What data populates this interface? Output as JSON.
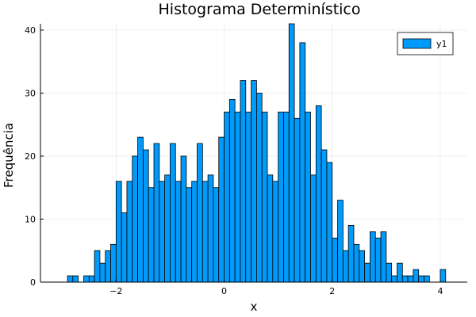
{
  "chart_data": {
    "type": "bar",
    "title": "Histograma Determinístico",
    "xlabel": "x",
    "ylabel": "Frequência",
    "xlim": [
      -3.4,
      4.5
    ],
    "ylim": [
      0,
      41
    ],
    "xticks": [
      -2,
      0,
      2,
      4
    ],
    "yticks": [
      0,
      10,
      20,
      30,
      40
    ],
    "grid": true,
    "legend_position": "top-right",
    "bin_width": 0.1,
    "series": [
      {
        "name": "y1",
        "color": "#009AFA",
        "bins": [
          {
            "x0": -2.9,
            "count": 1
          },
          {
            "x0": -2.8,
            "count": 1
          },
          {
            "x0": -2.7,
            "count": 0
          },
          {
            "x0": -2.6,
            "count": 1
          },
          {
            "x0": -2.5,
            "count": 1
          },
          {
            "x0": -2.4,
            "count": 5
          },
          {
            "x0": -2.3,
            "count": 3
          },
          {
            "x0": -2.2,
            "count": 5
          },
          {
            "x0": -2.1,
            "count": 6
          },
          {
            "x0": -2.0,
            "count": 16
          },
          {
            "x0": -1.9,
            "count": 11
          },
          {
            "x0": -1.8,
            "count": 16
          },
          {
            "x0": -1.7,
            "count": 20
          },
          {
            "x0": -1.6,
            "count": 23
          },
          {
            "x0": -1.5,
            "count": 21
          },
          {
            "x0": -1.4,
            "count": 15
          },
          {
            "x0": -1.3,
            "count": 22
          },
          {
            "x0": -1.2,
            "count": 16
          },
          {
            "x0": -1.1,
            "count": 17
          },
          {
            "x0": -1.0,
            "count": 22
          },
          {
            "x0": -0.9,
            "count": 16
          },
          {
            "x0": -0.8,
            "count": 20
          },
          {
            "x0": -0.7,
            "count": 15
          },
          {
            "x0": -0.6,
            "count": 16
          },
          {
            "x0": -0.5,
            "count": 22
          },
          {
            "x0": -0.4,
            "count": 16
          },
          {
            "x0": -0.3,
            "count": 17
          },
          {
            "x0": -0.2,
            "count": 15
          },
          {
            "x0": -0.1,
            "count": 23
          },
          {
            "x0": 0.0,
            "count": 27
          },
          {
            "x0": 0.1,
            "count": 29
          },
          {
            "x0": 0.2,
            "count": 27
          },
          {
            "x0": 0.3,
            "count": 32
          },
          {
            "x0": 0.4,
            "count": 27
          },
          {
            "x0": 0.5,
            "count": 32
          },
          {
            "x0": 0.6,
            "count": 30
          },
          {
            "x0": 0.7,
            "count": 27
          },
          {
            "x0": 0.8,
            "count": 17
          },
          {
            "x0": 0.9,
            "count": 16
          },
          {
            "x0": 1.0,
            "count": 27
          },
          {
            "x0": 1.1,
            "count": 27
          },
          {
            "x0": 1.2,
            "count": 41
          },
          {
            "x0": 1.3,
            "count": 26
          },
          {
            "x0": 1.4,
            "count": 38
          },
          {
            "x0": 1.5,
            "count": 27
          },
          {
            "x0": 1.6,
            "count": 17
          },
          {
            "x0": 1.7,
            "count": 28
          },
          {
            "x0": 1.8,
            "count": 21
          },
          {
            "x0": 1.9,
            "count": 19
          },
          {
            "x0": 2.0,
            "count": 7
          },
          {
            "x0": 2.1,
            "count": 13
          },
          {
            "x0": 2.2,
            "count": 5
          },
          {
            "x0": 2.3,
            "count": 9
          },
          {
            "x0": 2.4,
            "count": 6
          },
          {
            "x0": 2.5,
            "count": 5
          },
          {
            "x0": 2.6,
            "count": 3
          },
          {
            "x0": 2.7,
            "count": 8
          },
          {
            "x0": 2.8,
            "count": 7
          },
          {
            "x0": 2.9,
            "count": 8
          },
          {
            "x0": 3.0,
            "count": 3
          },
          {
            "x0": 3.1,
            "count": 1
          },
          {
            "x0": 3.2,
            "count": 3
          },
          {
            "x0": 3.3,
            "count": 1
          },
          {
            "x0": 3.4,
            "count": 1
          },
          {
            "x0": 3.5,
            "count": 2
          },
          {
            "x0": 3.6,
            "count": 1
          },
          {
            "x0": 3.7,
            "count": 1
          },
          {
            "x0": 3.8,
            "count": 0
          },
          {
            "x0": 3.9,
            "count": 0
          },
          {
            "x0": 4.0,
            "count": 2
          }
        ]
      }
    ]
  }
}
